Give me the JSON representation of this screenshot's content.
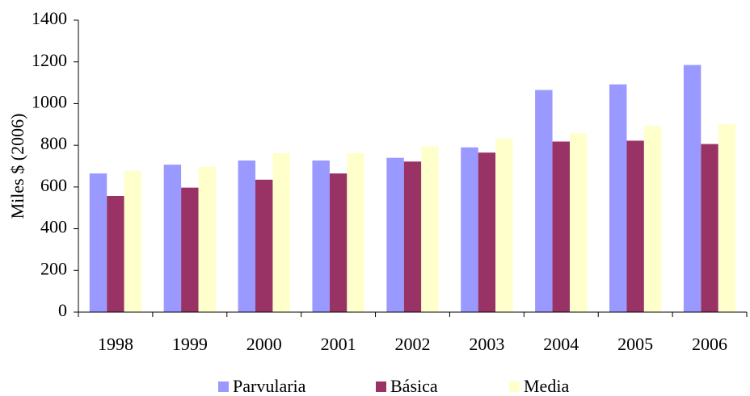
{
  "chart_data": {
    "type": "bar",
    "y_label": "Miles $ (2006)",
    "categories": [
      "1998",
      "1999",
      "2000",
      "2001",
      "2002",
      "2003",
      "2004",
      "2005",
      "2006"
    ],
    "series": [
      {
        "name": "Parvularia",
        "color": "#9999ff",
        "values": [
          665,
          707,
          727,
          727,
          740,
          790,
          1065,
          1092,
          1185
        ]
      },
      {
        "name": "Básica",
        "color": "#993366",
        "values": [
          557,
          597,
          635,
          665,
          722,
          765,
          818,
          822,
          806
        ]
      },
      {
        "name": "Media",
        "color": "#ffffcc",
        "values": [
          678,
          697,
          762,
          762,
          795,
          832,
          858,
          893,
          902
        ]
      }
    ],
    "ylim": [
      0,
      1400
    ],
    "yticks": [
      0,
      200,
      400,
      600,
      800,
      1000,
      1200,
      1400
    ],
    "grid": false
  }
}
